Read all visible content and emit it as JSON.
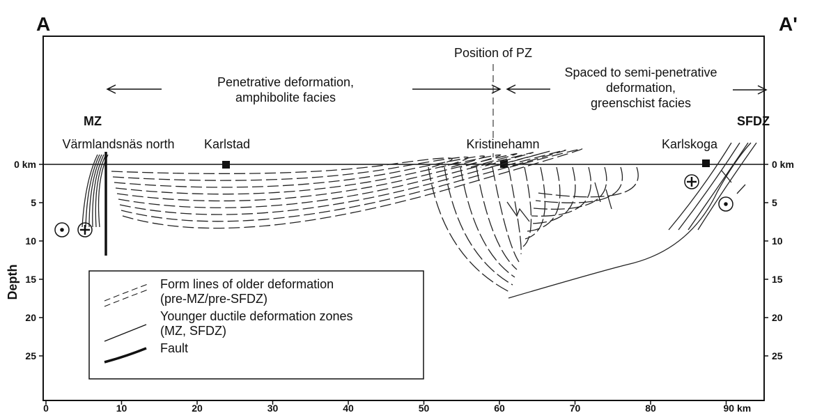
{
  "section": {
    "left_end": "A",
    "right_end": "A'"
  },
  "annotations": {
    "pz": "Position of PZ",
    "left_domain": [
      "Penetrative deformation,",
      "amphibolite facies"
    ],
    "right_domain": [
      "Spaced to semi-penetrative",
      "deformation,",
      "greenschist facies"
    ]
  },
  "zones": [
    "MZ",
    "SFDZ"
  ],
  "localities": [
    "Värmlandsnäs north",
    "Karlstad",
    "Kristinehamn",
    "Karlskoga"
  ],
  "depth_axis": {
    "title": "Depth",
    "ticks": [
      {
        "value": 0,
        "label": "0 km"
      },
      5,
      10,
      15,
      20,
      25
    ]
  },
  "distance_axis": {
    "ticks": [
      0,
      10,
      20,
      30,
      40,
      50,
      60,
      70,
      80,
      {
        "value": 90,
        "label": "90 km"
      }
    ]
  },
  "legend": [
    {
      "label": [
        "Form lines of older deformation",
        "(pre-MZ/pre-SFDZ)"
      ]
    },
    {
      "label": [
        "Younger ductile deformation zones",
        "(MZ, SFDZ)"
      ]
    },
    {
      "label": [
        "Fault"
      ]
    }
  ]
}
